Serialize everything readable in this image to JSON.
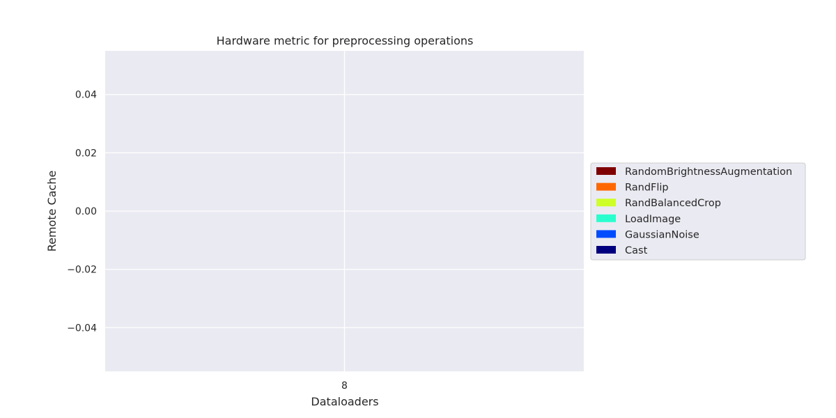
{
  "chart_data": {
    "type": "bar",
    "stacked": true,
    "title": "Hardware metric for preprocessing operations",
    "xlabel": "Dataloaders",
    "ylabel": "Remote Cache",
    "categories": [
      "8"
    ],
    "ylim": [
      -0.055,
      0.055
    ],
    "yticks": [
      -0.04,
      -0.02,
      0.0,
      0.02,
      0.04
    ],
    "ytick_labels": [
      "−0.04",
      "−0.02",
      "0.00",
      "0.02",
      "0.04"
    ],
    "grid": true,
    "legend_position": "center-right, outside plot",
    "background_color": "#eaeaf2",
    "series": [
      {
        "name": "Cast",
        "color": "#00007f",
        "values": [
          0
        ]
      },
      {
        "name": "GaussianNoise",
        "color": "#004cff",
        "values": [
          0
        ]
      },
      {
        "name": "LoadImage",
        "color": "#29ffce",
        "values": [
          0
        ]
      },
      {
        "name": "RandBalancedCrop",
        "color": "#ceff29",
        "values": [
          0
        ]
      },
      {
        "name": "RandFlip",
        "color": "#ff6800",
        "values": [
          0
        ]
      },
      {
        "name": "RandomBrightnessAugmentation",
        "color": "#7f0000",
        "values": [
          0
        ]
      }
    ]
  }
}
